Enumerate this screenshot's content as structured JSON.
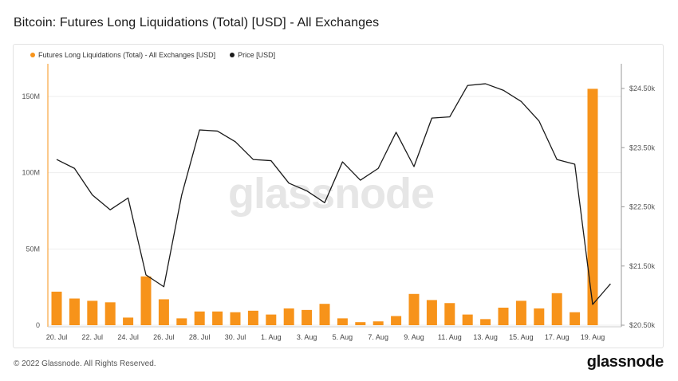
{
  "title": "Bitcoin: Futures Long Liquidations (Total) [USD] - All Exchanges",
  "watermark": "glassnode",
  "footer": "© 2022 Glassnode. All Rights Reserved.",
  "brand": "glassnode",
  "colors": {
    "bar": "#F7931A",
    "line": "#1a1a1a",
    "grid": "#eeeeee"
  },
  "chart_data": {
    "type": "bar",
    "title": "Bitcoin: Futures Long Liquidations (Total) [USD] - All Exchanges",
    "legend_position": "top-left",
    "grid": true,
    "x": [
      "20. Jul",
      "21. Jul",
      "22. Jul",
      "23. Jul",
      "24. Jul",
      "25. Jul",
      "26. Jul",
      "27. Jul",
      "28. Jul",
      "29. Jul",
      "30. Jul",
      "31. Jul",
      "1. Aug",
      "2. Aug",
      "3. Aug",
      "4. Aug",
      "5. Aug",
      "6. Aug",
      "7. Aug",
      "8. Aug",
      "9. Aug",
      "10. Aug",
      "11. Aug",
      "12. Aug",
      "13. Aug",
      "14. Aug",
      "15. Aug",
      "16. Aug",
      "17. Aug",
      "18. Aug",
      "19. Aug",
      "20. Aug"
    ],
    "x_tick_labels": [
      "20. Jul",
      "22. Jul",
      "24. Jul",
      "26. Jul",
      "28. Jul",
      "30. Jul",
      "1. Aug",
      "3. Aug",
      "5. Aug",
      "7. Aug",
      "9. Aug",
      "11. Aug",
      "13. Aug",
      "15. Aug",
      "17. Aug",
      "19. Aug"
    ],
    "series": [
      {
        "name": "Futures Long Liquidations (Total) - All Exchanges [USD]",
        "axis": "left",
        "kind": "bar",
        "values": [
          22000000,
          17500000,
          16000000,
          15000000,
          5000000,
          32000000,
          17000000,
          4500000,
          9000000,
          9000000,
          8500000,
          9500000,
          7000000,
          11000000,
          10000000,
          14000000,
          4500000,
          2000000,
          2500000,
          6000000,
          20500000,
          16500000,
          14500000,
          7000000,
          4000000,
          11500000,
          16000000,
          11000000,
          21000000,
          8500000,
          155000000,
          null
        ]
      },
      {
        "name": "Price [USD]",
        "axis": "right",
        "kind": "line",
        "values": [
          23300,
          23150,
          22700,
          22450,
          22650,
          21350,
          21150,
          22700,
          23800,
          23780,
          23600,
          23300,
          23280,
          22900,
          22770,
          22570,
          23260,
          22950,
          23150,
          23760,
          23180,
          24000,
          24020,
          24550,
          24580,
          24470,
          24280,
          23950,
          23300,
          23220,
          20850,
          21200
        ]
      }
    ],
    "y_left": {
      "ticks": [
        0,
        50000000,
        100000000,
        150000000
      ],
      "tick_labels": [
        "0",
        "50M",
        "100M",
        "150M"
      ],
      "range": [
        0,
        157000000
      ]
    },
    "y_right": {
      "ticks": [
        20500,
        21500,
        22500,
        23500,
        24500
      ],
      "tick_labels": [
        "$20.50k",
        "$21.50k",
        "$22.50k",
        "$23.50k",
        "$24.50k"
      ],
      "range": [
        20500,
        24800
      ]
    }
  }
}
